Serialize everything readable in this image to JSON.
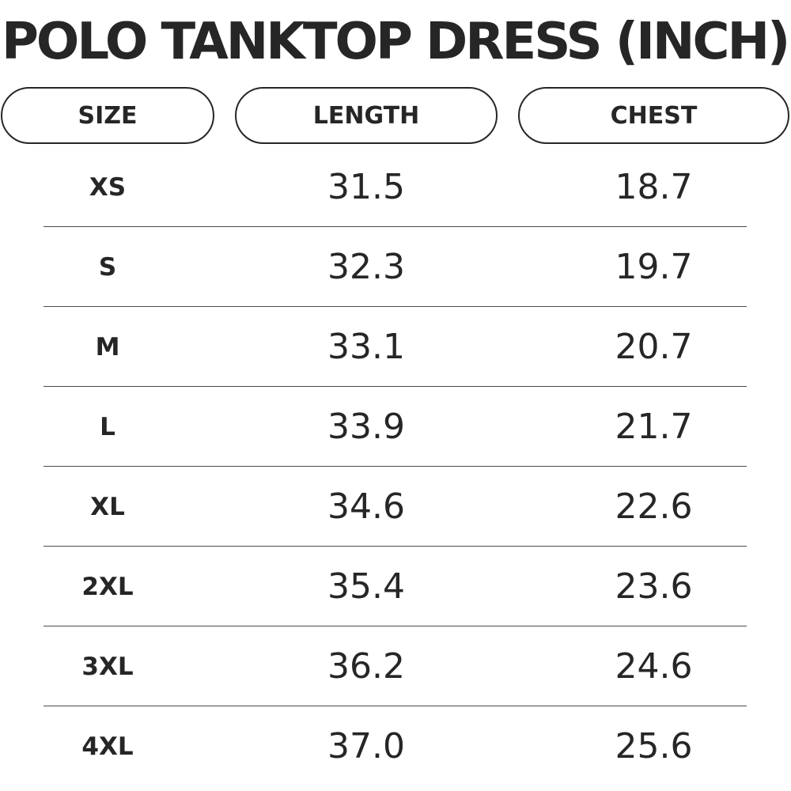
{
  "title": "POLO TANKTOP DRESS (INCH)",
  "headers": {
    "size": "SIZE",
    "length": "LENGTH",
    "chest": "CHEST"
  },
  "rows": [
    {
      "size": "XS",
      "length": "31.5",
      "chest": "18.7"
    },
    {
      "size": "S",
      "length": "32.3",
      "chest": "19.7"
    },
    {
      "size": "M",
      "length": "33.1",
      "chest": "20.7"
    },
    {
      "size": "L",
      "length": "33.9",
      "chest": "21.7"
    },
    {
      "size": "XL",
      "length": "34.6",
      "chest": "22.6"
    },
    {
      "size": "2XL",
      "length": "35.4",
      "chest": "23.6"
    },
    {
      "size": "3XL",
      "length": "36.2",
      "chest": "24.6"
    },
    {
      "size": "4XL",
      "length": "37.0",
      "chest": "25.6"
    }
  ]
}
